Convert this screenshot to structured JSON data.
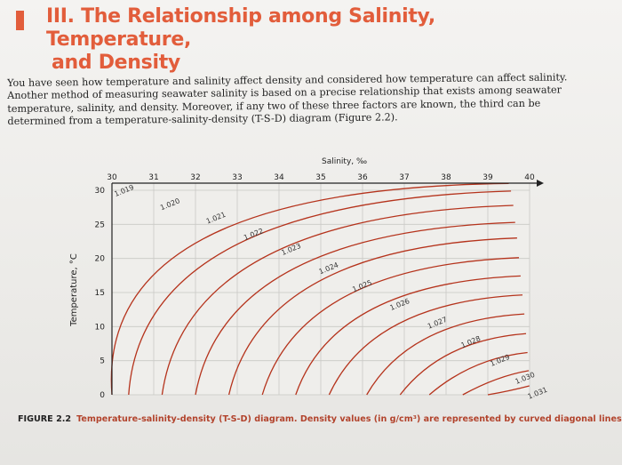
{
  "section": {
    "title_line1": "III. The Relationship among Salinity, Temperature,",
    "title_line2": "and Density"
  },
  "paragraph": "You have seen how temperature and salinity affect density and considered how temperature can affect salinity. Another method of measuring seawater salinity is based on a precise relationship that exists among seawater temperature, salinity, and density. Moreover, if any two of these three factors are known, the third can be determined from a temperature-salinity-density (T-S-D) diagram (Figure 2.2).",
  "figure": {
    "label": "FIGURE 2.2",
    "caption": "Temperature-salinity-density (T-S-D) diagram. Density values (in g/cm³) are represented by curved diagonal lines."
  },
  "chart_data": {
    "type": "line",
    "xlabel": "Salinity, ‰",
    "ylabel": "Temperature, °C",
    "xlim": [
      30,
      40
    ],
    "ylim": [
      0,
      30
    ],
    "x_ticks": [
      "30",
      "31",
      "32",
      "33",
      "34",
      "35",
      "36",
      "37",
      "38",
      "39",
      "40"
    ],
    "y_ticks": [
      "30",
      "25",
      "20",
      "15",
      "10",
      "5",
      "0"
    ],
    "grid": true,
    "line_color": "#b5331c",
    "series": [
      {
        "name": "1.019",
        "anchor": [
          30,
          29.2
        ],
        "x0": 30.0
      },
      {
        "name": "1.020",
        "anchor": [
          31.1,
          27.2
        ],
        "x0": 30.4
      },
      {
        "name": "1.021",
        "anchor": [
          32.2,
          25.2
        ],
        "x0": 31.2
      },
      {
        "name": "1.022",
        "anchor": [
          33.1,
          22.8
        ],
        "x0": 32.0
      },
      {
        "name": "1.023",
        "anchor": [
          34.0,
          20.6
        ],
        "x0": 32.8
      },
      {
        "name": "1.024",
        "anchor": [
          34.9,
          17.8
        ],
        "x0": 33.6
      },
      {
        "name": "1.025",
        "anchor": [
          35.7,
          15.2
        ],
        "x0": 34.4
      },
      {
        "name": "1.026",
        "anchor": [
          36.6,
          12.5
        ],
        "x0": 35.2
      },
      {
        "name": "1.027",
        "anchor": [
          37.5,
          9.8
        ],
        "x0": 36.1
      },
      {
        "name": "1.028",
        "anchor": [
          38.3,
          7.0
        ],
        "x0": 36.9
      },
      {
        "name": "1.029",
        "anchor": [
          39.0,
          4.3
        ],
        "x0": 37.6
      },
      {
        "name": "1.030",
        "anchor": [
          39.6,
          1.7
        ],
        "x0": 38.4
      },
      {
        "name": "1.031",
        "anchor": [
          39.9,
          -0.5
        ],
        "x0": 39.0
      }
    ]
  }
}
